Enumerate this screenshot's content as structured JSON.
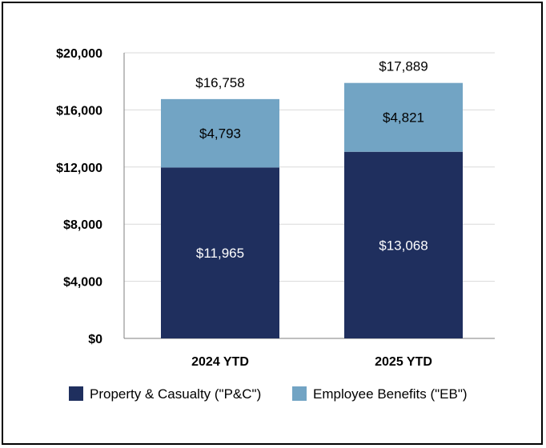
{
  "chart_data": {
    "type": "bar",
    "stacked": true,
    "categories": [
      "2024 YTD",
      "2025 YTD"
    ],
    "series": [
      {
        "name": "Property & Casualty (\"P&C\")",
        "values": [
          11965,
          13068
        ],
        "labels": [
          "$11,965",
          "$13,068"
        ],
        "color": "#1f2f5e",
        "label_color": "#ffffff"
      },
      {
        "name": "Employee Benefits (\"EB\")",
        "values": [
          4793,
          4821
        ],
        "labels": [
          "$4,793",
          "$4,821"
        ],
        "color": "#72a4c4",
        "label_color": "#000000"
      }
    ],
    "totals": [
      16758,
      17889
    ],
    "total_labels": [
      "$16,758",
      "$17,889"
    ],
    "y_ticks": [
      0,
      4000,
      8000,
      12000,
      16000,
      20000
    ],
    "y_tick_labels": [
      "$0",
      "$4,000",
      "$8,000",
      "$12,000",
      "$16,000",
      "$20,000"
    ],
    "ylim": [
      0,
      20000
    ],
    "grid": true,
    "legend": "bottom",
    "title": "",
    "xlabel": "",
    "ylabel": ""
  },
  "colors": {
    "grid": "#d9d9d9",
    "axis": "#7f7f7f"
  }
}
